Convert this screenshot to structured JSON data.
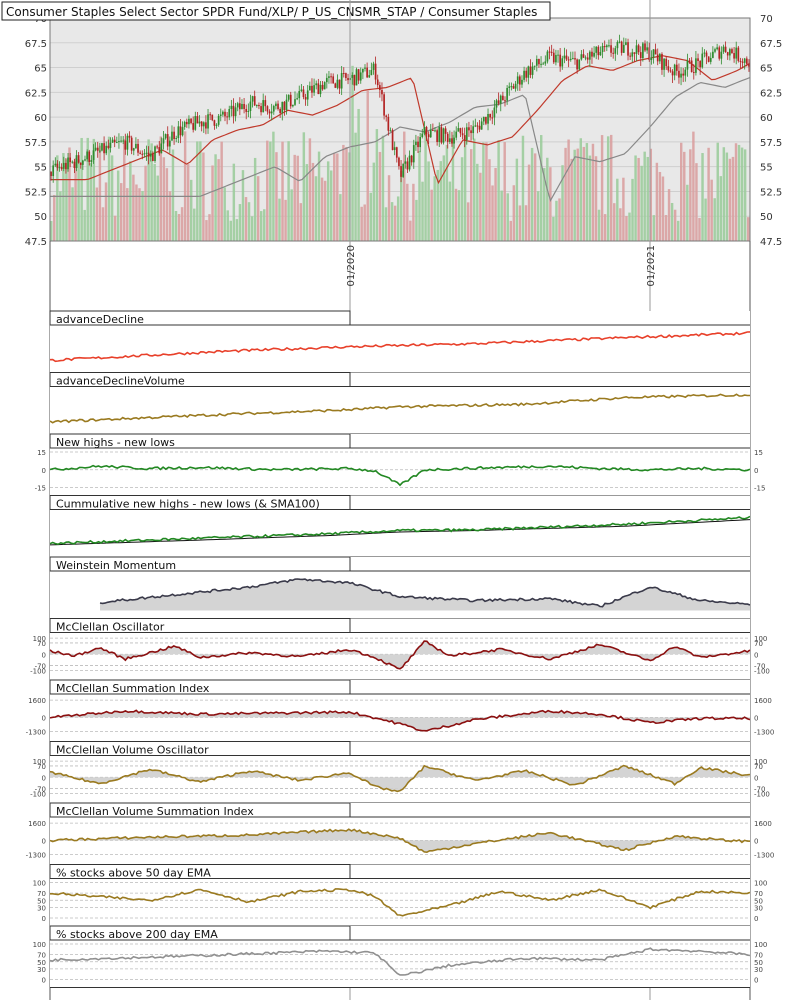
{
  "chart_data": {
    "title": "Consumer Staples Select Sector SPDR Fund/XLP/ P_US_CNSMR_STAP / Consumer Staples",
    "type": "multi-panel",
    "grid": true,
    "colors": {
      "background": "#e8e8e8",
      "up_candle": "#2e8b2e",
      "down_candle": "#b22222",
      "volume_up": "#9ccc9c",
      "volume_down": "#d9a0a0",
      "sma_short": "#c0392b",
      "sma_long": "#888888",
      "advance_decline": "#e8402a",
      "gold": "#9a7a20",
      "green": "#228822",
      "dark_red": "#8b1010",
      "slate": "#3a3a4a",
      "gray": "#909090"
    },
    "x_axis": {
      "start": "2019-01",
      "end": "2021-05",
      "tick_labels": [
        "01/2020",
        "01/2021"
      ]
    },
    "main": {
      "yticks": [
        "70",
        "67.5",
        "65",
        "62.5",
        "60",
        "57.5",
        "55",
        "52.5",
        "50",
        "47.5"
      ],
      "ylim": [
        47.5,
        70
      ],
      "price_path": [
        [
          "2019-01",
          54.5
        ],
        [
          "2019-02",
          55.5
        ],
        [
          "2019-03",
          56.5
        ],
        [
          "2019-04",
          57.5
        ],
        [
          "2019-05",
          56.0
        ],
        [
          "2019-06",
          58.5
        ],
        [
          "2019-07",
          59.5
        ],
        [
          "2019-08",
          60.0
        ],
        [
          "2019-09",
          61.5
        ],
        [
          "2019-10",
          61.0
        ],
        [
          "2019-11",
          62.0
        ],
        [
          "2019-12",
          63.5
        ],
        [
          "2020-01",
          63.8
        ],
        [
          "2020-02",
          64.8
        ],
        [
          "2020-03",
          54.0
        ],
        [
          "2020-04",
          58.5
        ],
        [
          "2020-05",
          58.0
        ],
        [
          "2020-06",
          58.8
        ],
        [
          "2020-07",
          61.5
        ],
        [
          "2020-08",
          64.5
        ],
        [
          "2020-09",
          66.0
        ],
        [
          "2020-10",
          65.5
        ],
        [
          "2020-11",
          66.5
        ],
        [
          "2020-12",
          67.0
        ],
        [
          "2021-01",
          66.5
        ],
        [
          "2021-02",
          64.5
        ],
        [
          "2021-03",
          65.5
        ],
        [
          "2021-04",
          67.0
        ],
        [
          "2021-05",
          65.5
        ]
      ]
    },
    "panels": [
      {
        "title": "advanceDecline",
        "color_key": "advance_decline",
        "points": [
          [
            "2019-01",
            0.0
          ],
          [
            "2019-08",
            0.3
          ],
          [
            "2020-01",
            0.45
          ],
          [
            "2020-06",
            0.55
          ],
          [
            "2020-12",
            0.75
          ],
          [
            "2021-05",
            0.9
          ]
        ]
      },
      {
        "title": "advanceDeclineVolume",
        "color_key": "gold",
        "points": [
          [
            "2019-01",
            0.0
          ],
          [
            "2019-08",
            0.25
          ],
          [
            "2020-01",
            0.4
          ],
          [
            "2020-03",
            0.5
          ],
          [
            "2020-08",
            0.58
          ],
          [
            "2020-12",
            0.8
          ],
          [
            "2021-05",
            0.9
          ]
        ]
      },
      {
        "title": "New highs - new lows",
        "color_key": "green",
        "yticks": [
          "15",
          "0",
          "-15"
        ],
        "ylim": [
          -15,
          15
        ],
        "points": [
          [
            "2019-01",
            0
          ],
          [
            "2019-03",
            3
          ],
          [
            "2019-05",
            1
          ],
          [
            "2019-07",
            2
          ],
          [
            "2019-10",
            0
          ],
          [
            "2020-01",
            1
          ],
          [
            "2020-02",
            -1
          ],
          [
            "2020-03",
            -13
          ],
          [
            "2020-04",
            0
          ],
          [
            "2020-07",
            2
          ],
          [
            "2020-09",
            3
          ],
          [
            "2020-11",
            1
          ],
          [
            "2021-01",
            0
          ],
          [
            "2021-03",
            1
          ],
          [
            "2021-05",
            0
          ]
        ]
      },
      {
        "title": "Cummulative new highs - new lows (& SMA100)",
        "color_key": "green",
        "points": [
          [
            "2019-01",
            0.05
          ],
          [
            "2019-06",
            0.2
          ],
          [
            "2019-12",
            0.38
          ],
          [
            "2020-03",
            0.5
          ],
          [
            "2020-06",
            0.52
          ],
          [
            "2020-12",
            0.72
          ],
          [
            "2021-05",
            0.95
          ]
        ],
        "sma": [
          [
            "2019-01",
            0.0
          ],
          [
            "2019-06",
            0.14
          ],
          [
            "2019-12",
            0.32
          ],
          [
            "2020-03",
            0.45
          ],
          [
            "2020-06",
            0.5
          ],
          [
            "2020-12",
            0.65
          ],
          [
            "2021-05",
            0.88
          ]
        ]
      },
      {
        "title": "Weinstein Momentum",
        "color_key": "slate",
        "fill": true,
        "points": [
          [
            "2019-03",
            0.4
          ],
          [
            "2019-06",
            0.6
          ],
          [
            "2019-09",
            0.8
          ],
          [
            "2019-11",
            1.0
          ],
          [
            "2020-01",
            0.9
          ],
          [
            "2020-03",
            0.55
          ],
          [
            "2020-06",
            0.45
          ],
          [
            "2020-09",
            0.5
          ],
          [
            "2020-11",
            0.3
          ],
          [
            "2021-01",
            0.8
          ],
          [
            "2021-03",
            0.45
          ],
          [
            "2021-05",
            0.35
          ]
        ]
      },
      {
        "title": "McClellan Oscillator",
        "color_key": "dark_red",
        "fill": true,
        "yticks": [
          "100",
          "70",
          "0",
          "-70",
          "-100"
        ],
        "ylim": [
          -110,
          110
        ],
        "points": [
          [
            "2019-01",
            20
          ],
          [
            "2019-02",
            -10
          ],
          [
            "2019-03",
            40
          ],
          [
            "2019-04",
            -30
          ],
          [
            "2019-05",
            10
          ],
          [
            "2019-06",
            50
          ],
          [
            "2019-07",
            -20
          ],
          [
            "2019-09",
            10
          ],
          [
            "2019-11",
            -15
          ],
          [
            "2020-01",
            30
          ],
          [
            "2020-02",
            -20
          ],
          [
            "2020-03",
            -95
          ],
          [
            "2020-04",
            80
          ],
          [
            "2020-05",
            -10
          ],
          [
            "2020-07",
            30
          ],
          [
            "2020-09",
            -30
          ],
          [
            "2020-11",
            60
          ],
          [
            "2021-01",
            -40
          ],
          [
            "2021-02",
            50
          ],
          [
            "2021-03",
            -20
          ],
          [
            "2021-05",
            20
          ]
        ]
      },
      {
        "title": "McClellan Summation Index",
        "color_key": "dark_red",
        "fill": true,
        "yticks": [
          "1600",
          "0",
          "-1300"
        ],
        "ylim": [
          -1500,
          1800
        ],
        "points": [
          [
            "2019-01",
            0
          ],
          [
            "2019-04",
            600
          ],
          [
            "2019-07",
            300
          ],
          [
            "2019-10",
            400
          ],
          [
            "2020-01",
            500
          ],
          [
            "2020-03",
            -600
          ],
          [
            "2020-04",
            -1300
          ],
          [
            "2020-06",
            -200
          ],
          [
            "2020-09",
            600
          ],
          [
            "2020-11",
            300
          ],
          [
            "2021-01",
            -500
          ],
          [
            "2021-03",
            -100
          ],
          [
            "2021-05",
            -100
          ]
        ]
      },
      {
        "title": "McClellan Volume Oscillator",
        "color_key": "gold",
        "fill": true,
        "yticks": [
          "100",
          "70",
          "0",
          "-70",
          "-100"
        ],
        "ylim": [
          -110,
          110
        ],
        "points": [
          [
            "2019-01",
            30
          ],
          [
            "2019-03",
            -40
          ],
          [
            "2019-05",
            50
          ],
          [
            "2019-07",
            -30
          ],
          [
            "2019-09",
            40
          ],
          [
            "2019-11",
            -20
          ],
          [
            "2020-01",
            30
          ],
          [
            "2020-02",
            -60
          ],
          [
            "2020-03",
            -90
          ],
          [
            "2020-04",
            70
          ],
          [
            "2020-06",
            -20
          ],
          [
            "2020-08",
            40
          ],
          [
            "2020-10",
            -50
          ],
          [
            "2020-12",
            70
          ],
          [
            "2021-02",
            -40
          ],
          [
            "2021-03",
            60
          ],
          [
            "2021-05",
            10
          ]
        ]
      },
      {
        "title": "McClellan Volume Summation Index",
        "color_key": "gold",
        "fill": true,
        "yticks": [
          "1600",
          "0",
          "-1300"
        ],
        "ylim": [
          -1500,
          1800
        ],
        "points": [
          [
            "2019-01",
            0
          ],
          [
            "2019-05",
            300
          ],
          [
            "2019-09",
            500
          ],
          [
            "2020-01",
            1000
          ],
          [
            "2020-03",
            200
          ],
          [
            "2020-04",
            -1100
          ],
          [
            "2020-06",
            -300
          ],
          [
            "2020-09",
            700
          ],
          [
            "2020-12",
            -900
          ],
          [
            "2021-02",
            400
          ],
          [
            "2021-04",
            0
          ],
          [
            "2021-05",
            -100
          ]
        ]
      },
      {
        "title": "% stocks above 50 day EMA",
        "color_key": "gold",
        "yticks": [
          "100",
          "70",
          "50",
          "30",
          "0"
        ],
        "ylim": [
          0,
          100
        ],
        "points": [
          [
            "2019-01",
            70
          ],
          [
            "2019-03",
            60
          ],
          [
            "2019-05",
            50
          ],
          [
            "2019-07",
            80
          ],
          [
            "2019-09",
            45
          ],
          [
            "2019-11",
            75
          ],
          [
            "2020-01",
            80
          ],
          [
            "2020-02",
            60
          ],
          [
            "2020-03",
            5
          ],
          [
            "2020-05",
            35
          ],
          [
            "2020-07",
            75
          ],
          [
            "2020-09",
            50
          ],
          [
            "2020-11",
            80
          ],
          [
            "2021-01",
            30
          ],
          [
            "2021-03",
            75
          ],
          [
            "2021-05",
            70
          ]
        ]
      },
      {
        "title": "% stocks above 200 day EMA",
        "color_key": "gray",
        "yticks": [
          "100",
          "70",
          "50",
          "30",
          "0"
        ],
        "ylim": [
          0,
          100
        ],
        "points": [
          [
            "2019-01",
            55
          ],
          [
            "2019-06",
            65
          ],
          [
            "2019-12",
            80
          ],
          [
            "2020-02",
            75
          ],
          [
            "2020-03",
            10
          ],
          [
            "2020-05",
            40
          ],
          [
            "2020-08",
            60
          ],
          [
            "2020-11",
            55
          ],
          [
            "2021-01",
            85
          ],
          [
            "2021-03",
            80
          ],
          [
            "2021-05",
            70
          ]
        ]
      }
    ]
  }
}
